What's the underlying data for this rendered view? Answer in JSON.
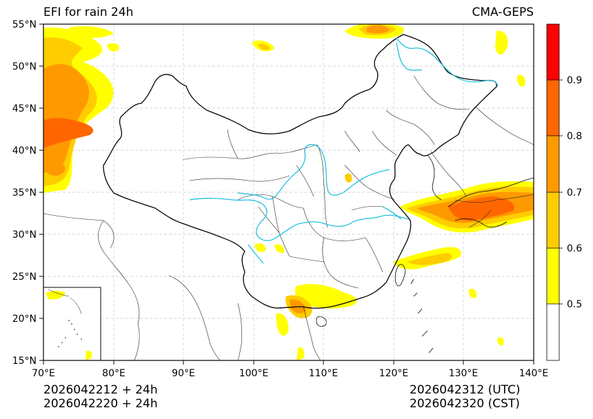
{
  "title_left": "EFI for rain 24h",
  "title_right": "CMA-GEPS",
  "x_ticks": [
    "70°E",
    "80°E",
    "90°E",
    "100°E",
    "110°E",
    "120°E",
    "130°E",
    "140°E"
  ],
  "y_ticks": [
    "55°N",
    "50°N",
    "45°N",
    "40°N",
    "35°N",
    "30°N",
    "25°N",
    "20°N",
    "15°N"
  ],
  "colorbar": {
    "levels": [
      "0.5",
      "0.6",
      "0.7",
      "0.8",
      "0.9"
    ],
    "colors": [
      "#ffffff",
      "#ffff00",
      "#ffcc00",
      "#ff9900",
      "#ff6600",
      "#ff0000"
    ]
  },
  "footer": {
    "init_utc": "2026042212 + 24h",
    "init_cst": "2026042220 + 24h",
    "valid_utc": "2026042312 (UTC)",
    "valid_cst": "2026042320 (CST)"
  },
  "colors": {
    "border": "#000000",
    "rivers": "#20c0e0",
    "grid": "#c8c8c8"
  }
}
